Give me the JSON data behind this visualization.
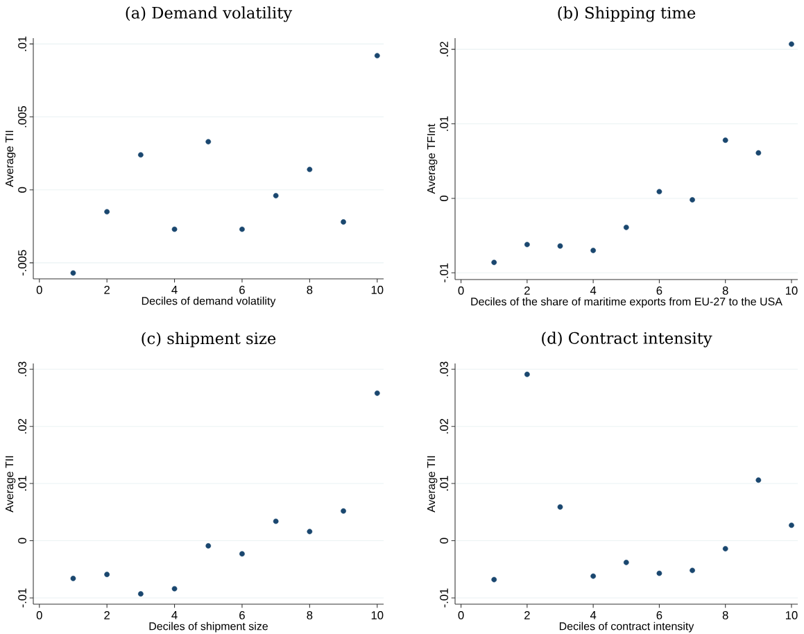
{
  "chart_data": [
    {
      "type": "scatter",
      "title": "(a) Demand volatility",
      "xlabel": "Deciles of demand volatility",
      "ylabel": "Average TII",
      "color": "#1a476f",
      "marker": "circle",
      "grid": "y",
      "x": [
        1,
        2,
        3,
        4,
        5,
        6,
        7,
        8,
        9,
        10
      ],
      "values": [
        -0.0057,
        -0.0015,
        0.0024,
        -0.0027,
        0.0033,
        -0.0027,
        -0.0004,
        0.0014,
        -0.0022,
        0.0092
      ],
      "xlim": [
        -0.18,
        10.19
      ],
      "ylim": [
        -0.0061,
        0.0104
      ],
      "xticks": [
        0,
        2,
        4,
        6,
        8,
        10
      ],
      "yticks": [
        {
          "value": -0.005,
          "label": "-.005"
        },
        {
          "value": 0,
          "label": "0"
        },
        {
          "value": 0.005,
          "label": ".005"
        },
        {
          "value": 0.01,
          "label": ".01"
        }
      ]
    },
    {
      "type": "scatter",
      "title": "(b) Shipping time",
      "xlabel": "Deciles of the share of maritime exports from EU-27 to the USA",
      "ylabel": "Average TFInt",
      "color": "#1a476f",
      "marker": "circle",
      "grid": "y",
      "x": [
        1,
        2,
        3,
        4,
        5,
        6,
        7,
        8,
        9,
        10
      ],
      "values": [
        -0.0086,
        -0.0062,
        -0.0064,
        -0.007,
        -0.0039,
        0.0009,
        -0.0002,
        0.0078,
        0.0061,
        0.0207
      ],
      "xlim": [
        -0.18,
        10.19
      ],
      "ylim": [
        -0.0109,
        0.0215
      ],
      "xticks": [
        0,
        2,
        4,
        6,
        8,
        10
      ],
      "yticks": [
        {
          "value": -0.01,
          "label": "-.01"
        },
        {
          "value": 0,
          "label": "0"
        },
        {
          "value": 0.01,
          "label": ".01"
        },
        {
          "value": 0.02,
          "label": ".02"
        }
      ]
    },
    {
      "type": "scatter",
      "title": "(c) shipment size",
      "xlabel": "Deciles of shipment size",
      "ylabel": "Average TII",
      "color": "#1a476f",
      "marker": "circle",
      "grid": "y",
      "x": [
        1,
        2,
        3,
        4,
        5,
        6,
        7,
        8,
        9,
        10
      ],
      "values": [
        -0.0066,
        -0.0059,
        -0.0093,
        -0.0084,
        -0.0009,
        -0.0023,
        0.0034,
        0.0016,
        0.0052,
        0.0258
      ],
      "xlim": [
        -0.18,
        10.19
      ],
      "ylim": [
        -0.0111,
        0.031
      ],
      "xticks": [
        0,
        2,
        4,
        6,
        8,
        10
      ],
      "yticks": [
        {
          "value": -0.01,
          "label": "-.01"
        },
        {
          "value": 0,
          "label": "0"
        },
        {
          "value": 0.01,
          "label": ".01"
        },
        {
          "value": 0.02,
          "label": ".02"
        },
        {
          "value": 0.03,
          "label": ".03"
        }
      ]
    },
    {
      "type": "scatter",
      "title": "(d) Contract intensity",
      "xlabel": "Deciles of contract intensity",
      "ylabel": "Average TII",
      "color": "#1a476f",
      "marker": "circle",
      "grid": "y",
      "x": [
        1,
        2,
        3,
        4,
        5,
        6,
        7,
        8,
        9,
        10
      ],
      "values": [
        -0.0068,
        0.0291,
        0.0059,
        -0.0062,
        -0.0038,
        -0.0057,
        -0.0052,
        -0.0014,
        0.0106,
        0.0027
      ],
      "xlim": [
        -0.18,
        10.19
      ],
      "ylim": [
        -0.0111,
        0.031
      ],
      "xticks": [
        0,
        2,
        4,
        6,
        8,
        10
      ],
      "yticks": [
        {
          "value": -0.01,
          "label": "-.01"
        },
        {
          "value": 0,
          "label": "0"
        },
        {
          "value": 0.01,
          "label": ".01"
        },
        {
          "value": 0.02,
          "label": ".02"
        },
        {
          "value": 0.03,
          "label": ".03"
        }
      ]
    }
  ]
}
